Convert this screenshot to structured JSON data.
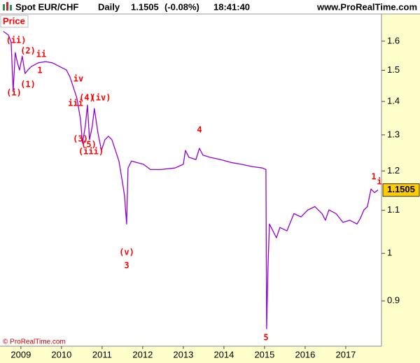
{
  "chart_data": {
    "type": "line",
    "instrument": "Spot EUR/CHF",
    "period": "Daily",
    "last_price": 1.1505,
    "change": "(-0.08%)",
    "time": "18:41:40",
    "source": "www.ProRealTime.com",
    "panel_label": "Price",
    "copyright": "© ProRealTime.com",
    "log_scale": true,
    "grid": false,
    "xlim": [
      2008.52,
      2017.88
    ],
    "xticks": [
      2009,
      2010,
      2011,
      2012,
      2013,
      2014,
      2015,
      2016,
      2017
    ],
    "ylim": [
      0.814,
      1.694
    ],
    "yticks": [
      1.6,
      1.5,
      1.4,
      1.3,
      1.2,
      1.1,
      1,
      0.9
    ],
    "series": [
      {
        "color": "#9400d3",
        "x": [
          2008.569,
          2008.69,
          2008.759,
          2008.81,
          2008.862,
          2008.914,
          2008.966,
          2009.034,
          2009.103,
          2009.172,
          2009.259,
          2009.431,
          2009.603,
          2009.776,
          2009.948,
          2010.121,
          2010.207,
          2010.293,
          2010.379,
          2010.466,
          2010.517,
          2010.586,
          2010.638,
          2010.69,
          2010.759,
          2010.81,
          2010.897,
          2010.983,
          2011.069,
          2011.155,
          2011.241,
          2011.328,
          2011.414,
          2011.5,
          2011.552,
          2011.603,
          2011.638,
          2011.724,
          2011.845,
          2012.017,
          2012.19,
          2012.448,
          2012.793,
          2013.0,
          2013.052,
          2013.138,
          2013.31,
          2013.397,
          2013.483,
          2013.655,
          2013.914,
          2014.172,
          2014.431,
          2014.69,
          2014.948,
          2015.034,
          2015.052,
          2015.086,
          2015.121,
          2015.207,
          2015.293,
          2015.379,
          2015.552,
          2015.724,
          2015.897,
          2016.069,
          2016.241,
          2016.414,
          2016.5,
          2016.586,
          2016.759,
          2016.931,
          2017.103,
          2017.276,
          2017.362,
          2017.448,
          2017.534,
          2017.621,
          2017.707,
          2017.793
        ],
        "values": [
          1.635,
          1.622,
          1.597,
          1.433,
          1.56,
          1.525,
          1.501,
          1.548,
          1.489,
          1.501,
          1.513,
          1.525,
          1.529,
          1.525,
          1.513,
          1.501,
          1.478,
          1.444,
          1.411,
          1.347,
          1.276,
          1.326,
          1.389,
          1.286,
          1.326,
          1.378,
          1.306,
          1.256,
          1.286,
          1.296,
          1.286,
          1.256,
          1.227,
          1.171,
          1.136,
          1.067,
          1.208,
          1.227,
          1.223,
          1.218,
          1.204,
          1.204,
          1.208,
          1.218,
          1.256,
          1.237,
          1.231,
          1.262,
          1.243,
          1.237,
          1.231,
          1.223,
          1.218,
          1.212,
          1.208,
          1.204,
          0.846,
          0.972,
          1.067,
          1.051,
          1.035,
          1.059,
          1.051,
          1.092,
          1.084,
          1.101,
          1.109,
          1.092,
          1.076,
          1.101,
          1.092,
          1.071,
          1.076,
          1.067,
          1.081,
          1.101,
          1.109,
          1.153,
          1.144,
          1.1505
        ]
      }
    ],
    "annotations": [
      "(ii)",
      "(2)",
      "ii",
      "1",
      "(i)",
      "(1)",
      "iv",
      "iii",
      "(4)",
      "(iv)",
      "(3)",
      "(5)",
      "(iii)",
      "4",
      "(v)",
      "3",
      "5",
      "1",
      "i"
    ]
  }
}
